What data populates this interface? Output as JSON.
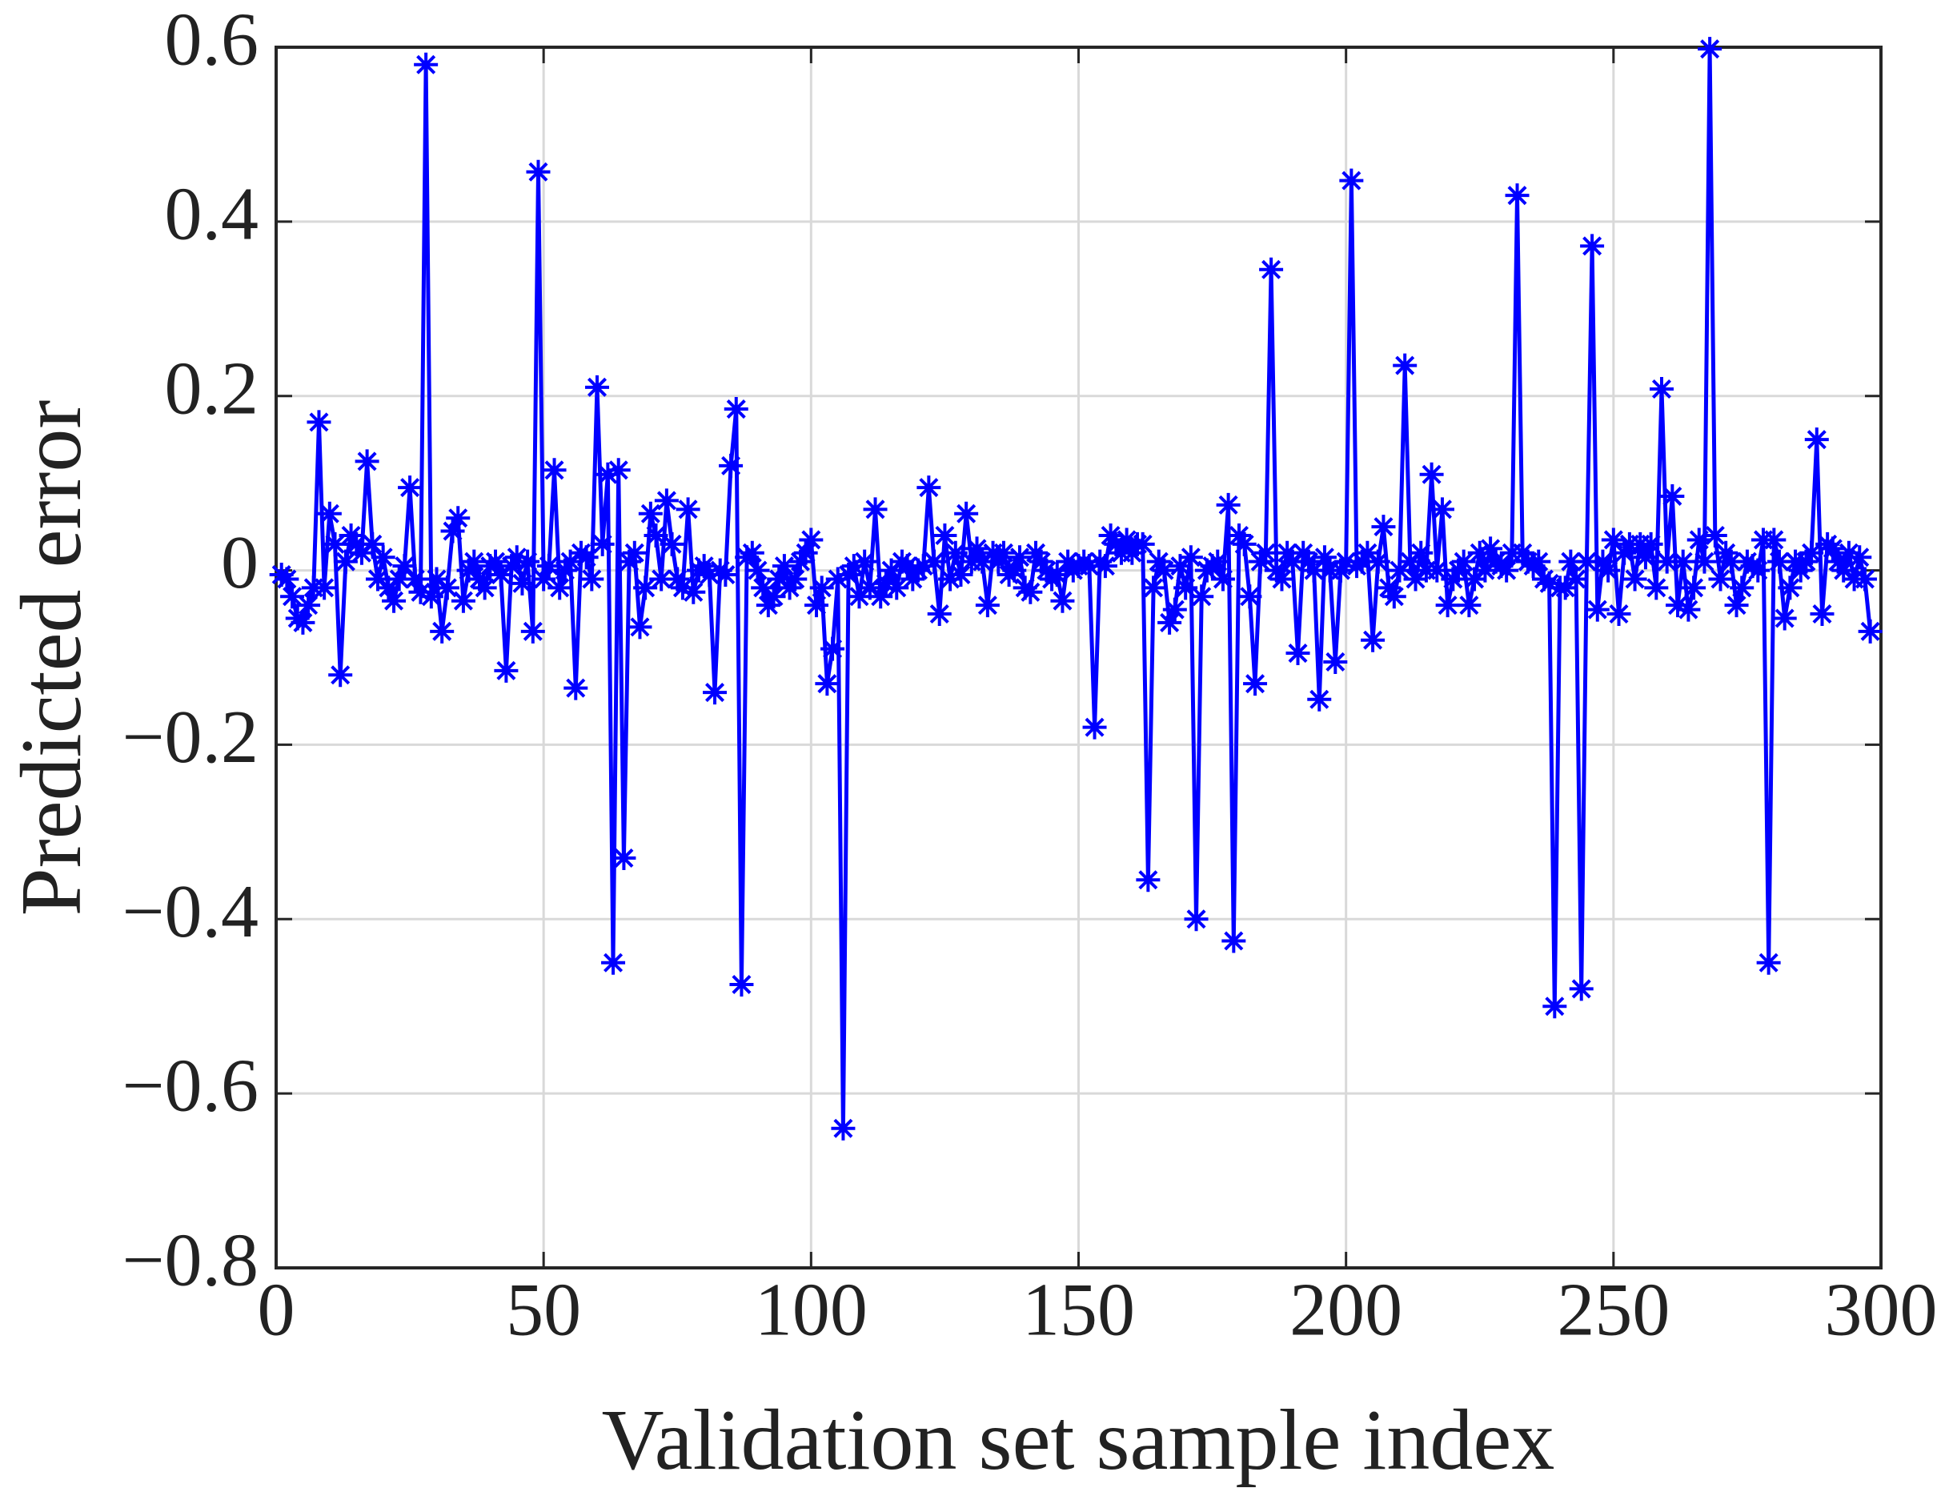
{
  "chart_data": {
    "type": "line",
    "xlabel": "Validation set sample index",
    "ylabel": "Predicted  error",
    "color": "#0000ff",
    "marker": "asterisk",
    "grid": true,
    "xlim": [
      0,
      300
    ],
    "ylim": [
      -0.8,
      0.6
    ],
    "xticks": [
      0,
      50,
      100,
      150,
      200,
      250,
      300
    ],
    "yticks": [
      {
        "value": -0.8,
        "label": "−0.8"
      },
      {
        "value": -0.6,
        "label": "−0.6"
      },
      {
        "value": -0.4,
        "label": "−0.4"
      },
      {
        "value": -0.2,
        "label": "−0.2"
      },
      0,
      0.2,
      0.4,
      0.6
    ],
    "x": [
      1,
      2,
      3,
      4,
      5,
      6,
      7,
      8,
      9,
      10,
      11,
      12,
      13,
      14,
      15,
      16,
      17,
      18,
      19,
      20,
      21,
      22,
      23,
      24,
      25,
      26,
      27,
      28,
      29,
      30,
      31,
      32,
      33,
      34,
      35,
      36,
      37,
      38,
      39,
      40,
      41,
      42,
      43,
      44,
      45,
      46,
      47,
      48,
      49,
      50,
      51,
      52,
      53,
      54,
      55,
      56,
      57,
      58,
      59,
      60,
      61,
      62,
      63,
      64,
      65,
      66,
      67,
      68,
      69,
      70,
      71,
      72,
      73,
      74,
      75,
      76,
      77,
      78,
      79,
      80,
      81,
      82,
      83,
      84,
      85,
      86,
      87,
      88,
      89,
      90,
      91,
      92,
      93,
      94,
      95,
      96,
      97,
      98,
      99,
      100,
      101,
      102,
      103,
      104,
      105,
      106,
      107,
      108,
      109,
      110,
      111,
      112,
      113,
      114,
      115,
      116,
      117,
      118,
      119,
      120,
      121,
      122,
      123,
      124,
      125,
      126,
      127,
      128,
      129,
      130,
      131,
      132,
      133,
      134,
      135,
      136,
      137,
      138,
      139,
      140,
      141,
      142,
      143,
      144,
      145,
      146,
      147,
      148,
      149,
      150,
      151,
      152,
      153,
      154,
      155,
      156,
      157,
      158,
      159,
      160,
      161,
      162,
      163,
      164,
      165,
      166,
      167,
      168,
      169,
      170,
      171,
      172,
      173,
      174,
      175,
      176,
      177,
      178,
      179,
      180,
      181,
      182,
      183,
      184,
      185,
      186,
      187,
      188,
      189,
      190,
      191,
      192,
      193,
      194,
      195,
      196,
      197,
      198,
      199,
      200,
      201,
      202,
      203,
      204,
      205,
      206,
      207,
      208,
      209,
      210,
      211,
      212,
      213,
      214,
      215,
      216,
      217,
      218,
      219,
      220,
      221,
      222,
      223,
      224,
      225,
      226,
      227,
      228,
      229,
      230,
      231,
      232,
      233,
      234,
      235,
      236,
      237,
      238,
      239,
      240,
      241,
      242,
      243,
      244,
      245,
      246,
      247,
      248,
      249,
      250,
      251,
      252,
      253,
      254,
      255,
      256,
      257,
      258,
      259,
      260,
      261,
      262,
      263,
      264,
      265,
      266,
      267,
      268,
      269,
      270,
      271,
      272,
      273,
      274,
      275,
      276,
      277,
      278,
      279,
      280,
      281,
      282,
      283,
      284,
      285,
      286,
      287,
      288,
      289,
      290,
      291,
      292,
      293,
      294,
      295,
      296,
      297,
      298
    ],
    "values": [
      -0.005,
      -0.01,
      -0.03,
      -0.055,
      -0.06,
      -0.04,
      -0.02,
      0.17,
      -0.02,
      0.065,
      0.03,
      -0.12,
      0.01,
      0.04,
      0.03,
      0.02,
      0.125,
      0.03,
      -0.01,
      0.015,
      -0.02,
      -0.035,
      -0.01,
      0.005,
      0.095,
      -0.01,
      -0.025,
      0.58,
      -0.03,
      -0.01,
      -0.07,
      -0.02,
      0.045,
      0.06,
      -0.035,
      0.0,
      0.01,
      -0.01,
      -0.02,
      0.005,
      0.01,
      -0.005,
      -0.115,
      0.005,
      0.015,
      -0.015,
      0.01,
      -0.07,
      0.457,
      -0.01,
      0.005,
      0.115,
      -0.02,
      0.0,
      0.01,
      -0.135,
      0.02,
      0.015,
      -0.01,
      0.21,
      0.03,
      0.11,
      -0.45,
      0.115,
      -0.33,
      0.01,
      0.02,
      -0.065,
      -0.02,
      0.065,
      0.04,
      -0.01,
      0.08,
      0.03,
      -0.01,
      -0.02,
      0.07,
      -0.025,
      0.0,
      0.005,
      -0.005,
      -0.14,
      0.0,
      -0.005,
      0.12,
      0.185,
      -0.475,
      0.015,
      0.02,
      0.0,
      -0.02,
      -0.04,
      -0.03,
      -0.01,
      0.005,
      -0.02,
      -0.01,
      0.01,
      0.02,
      0.035,
      -0.04,
      -0.02,
      -0.13,
      -0.09,
      -0.01,
      -0.64,
      -0.005,
      0.005,
      -0.03,
      0.01,
      -0.02,
      0.07,
      -0.03,
      -0.015,
      0.0,
      -0.02,
      0.01,
      0.005,
      -0.01,
      0.0,
      0.005,
      0.095,
      0.01,
      -0.05,
      0.04,
      -0.01,
      0.02,
      -0.005,
      0.065,
      0.01,
      0.025,
      0.01,
      -0.04,
      0.02,
      0.01,
      0.02,
      -0.005,
      0.0,
      0.015,
      -0.02,
      -0.025,
      0.02,
      0.01,
      0.0,
      -0.01,
      -0.005,
      -0.035,
      0.01,
      0.0,
      0.005,
      0.01,
      0.005,
      -0.18,
      0.01,
      0.005,
      0.04,
      0.03,
      0.02,
      0.035,
      0.02,
      0.03,
      0.03,
      -0.355,
      -0.02,
      0.01,
      0.0,
      -0.06,
      -0.045,
      0.005,
      -0.02,
      0.015,
      -0.4,
      -0.03,
      0.0,
      0.005,
      0.01,
      -0.01,
      0.075,
      -0.425,
      0.04,
      0.03,
      -0.03,
      -0.13,
      0.01,
      0.02,
      0.345,
      0.0,
      -0.01,
      0.02,
      0.01,
      -0.095,
      0.02,
      0.01,
      0.0,
      -0.148,
      0.015,
      0.0,
      -0.105,
      0.0,
      0.01,
      0.447,
      0.005,
      0.01,
      0.02,
      -0.08,
      0.01,
      0.05,
      -0.02,
      -0.03,
      0.0,
      0.235,
      0.01,
      -0.01,
      0.02,
      0.0,
      0.11,
      0.0,
      0.07,
      -0.04,
      -0.01,
      0.0,
      0.01,
      -0.04,
      -0.01,
      0.02,
      0.0,
      0.025,
      0.01,
      0.005,
      0.0,
      0.02,
      0.43,
      0.02,
      0.01,
      0.005,
      0.01,
      -0.01,
      -0.015,
      -0.5,
      -0.02,
      -0.02,
      0.01,
      -0.01,
      -0.48,
      0.01,
      0.372,
      -0.045,
      0.01,
      0.0,
      0.035,
      -0.05,
      0.02,
      0.03,
      -0.01,
      0.03,
      0.015,
      0.03,
      -0.02,
      0.208,
      0.01,
      0.085,
      -0.04,
      0.01,
      -0.045,
      -0.02,
      0.035,
      0.01,
      0.598,
      0.04,
      -0.01,
      0.02,
      0.01,
      -0.04,
      -0.02,
      0.01,
      0.005,
      0.0,
      0.035,
      -0.45,
      0.035,
      0.01,
      -0.055,
      -0.02,
      0.01,
      0.0,
      0.01,
      0.02,
      0.15,
      -0.05,
      0.03,
      0.025,
      0.01,
      0.0,
      0.02,
      -0.01,
      0.015,
      -0.01,
      -0.07
    ]
  }
}
